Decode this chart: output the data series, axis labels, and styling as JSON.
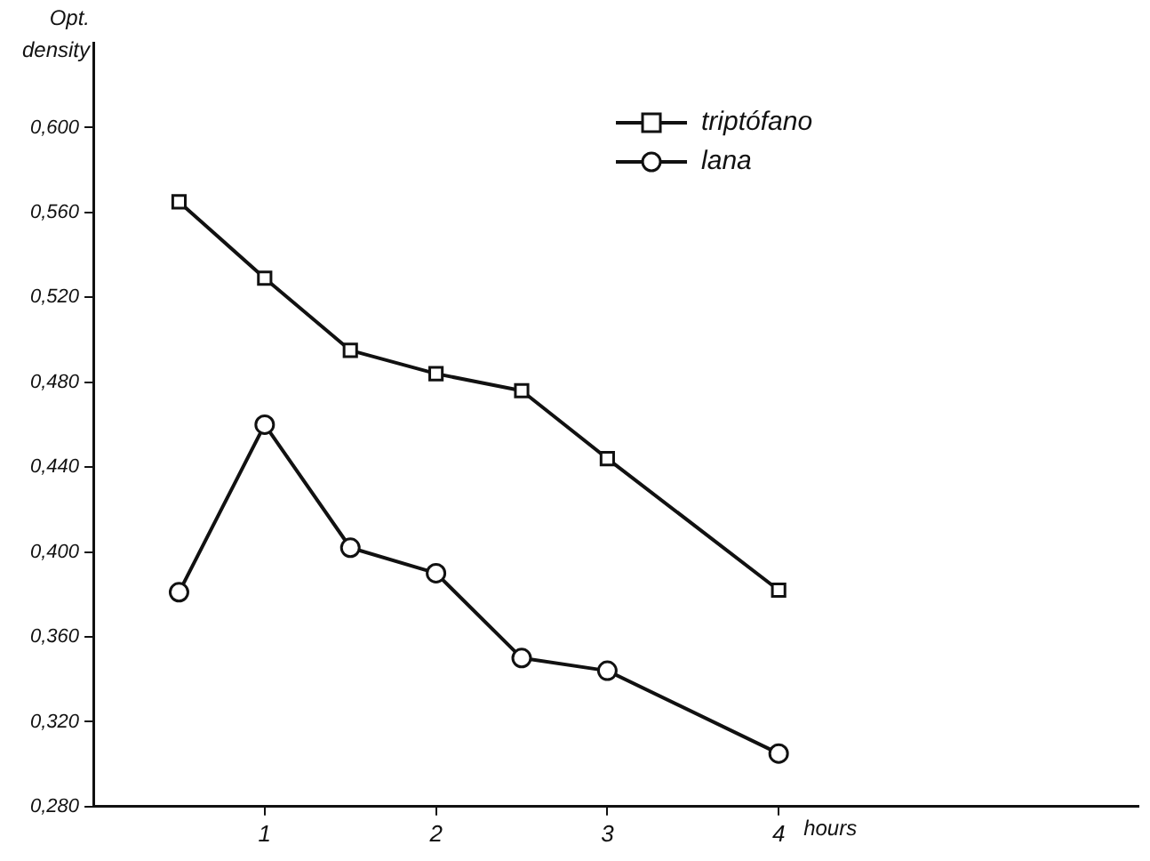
{
  "chart_data": {
    "type": "line",
    "ylabel": "Opt. density",
    "xlabel": "hours",
    "x": [
      0.5,
      1,
      1.5,
      2,
      2.5,
      3,
      4
    ],
    "series": [
      {
        "name": "triptófano",
        "color": "#111111",
        "marker": "square",
        "values": [
          0.565,
          0.529,
          0.495,
          0.484,
          0.476,
          0.444,
          0.382
        ]
      },
      {
        "name": "lana",
        "color": "#111111",
        "marker": "circle",
        "values": [
          0.381,
          0.46,
          0.402,
          0.39,
          0.35,
          0.344,
          0.305
        ]
      }
    ],
    "xlim": [
      0,
      6.1
    ],
    "xticks": [
      1,
      2,
      3,
      4
    ],
    "ylim": [
      0.28,
      0.64
    ],
    "yticks": [
      {
        "value": 0.28,
        "label": "0,280"
      },
      {
        "value": 0.32,
        "label": "0,320"
      },
      {
        "value": 0.36,
        "label": "0,360"
      },
      {
        "value": 0.4,
        "label": "0,400"
      },
      {
        "value": 0.44,
        "label": "0,440"
      },
      {
        "value": 0.48,
        "label": "0,480"
      },
      {
        "value": 0.52,
        "label": "0,520"
      },
      {
        "value": 0.56,
        "label": "0,560"
      },
      {
        "value": 0.6,
        "label": "0,600"
      }
    ],
    "grid": false,
    "legend": "top right",
    "line_style": "solid"
  }
}
